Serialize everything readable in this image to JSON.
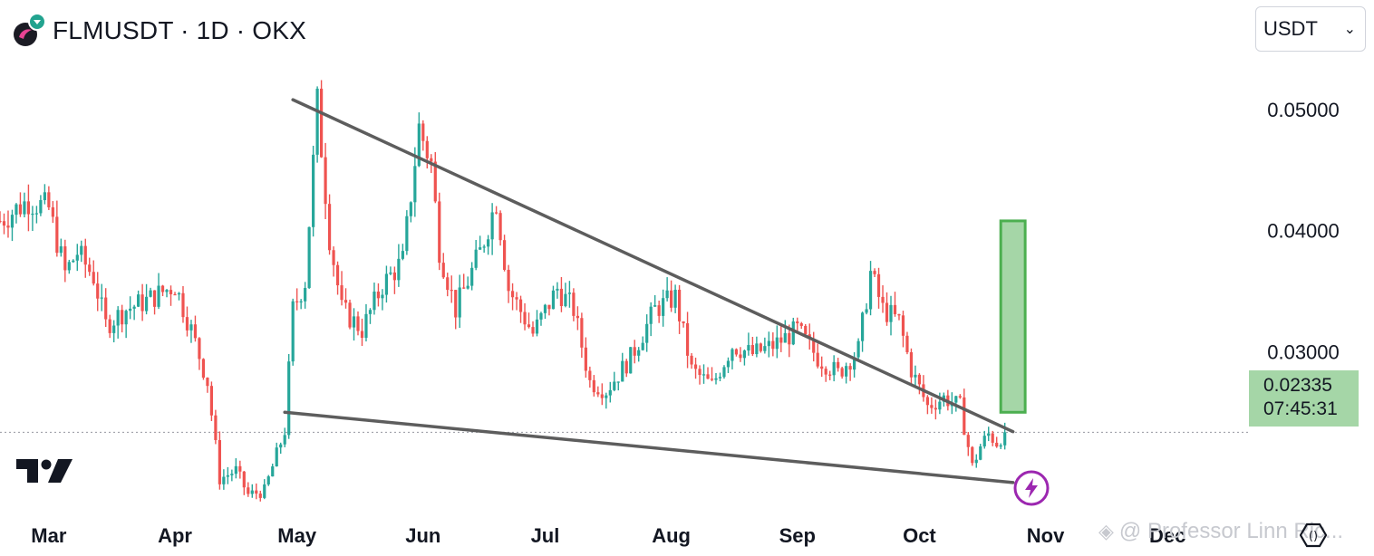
{
  "header": {
    "title": "FLMUSDT · 1D · OKX"
  },
  "currency": {
    "selected": "USDT"
  },
  "price_label": {
    "price": "0.02335",
    "countdown": "07:45:31"
  },
  "watermark": {
    "text": "@ Professor Linn Ric..."
  },
  "colors": {
    "up": "#26a69a",
    "down": "#ef5350",
    "trendline": "#5d5d5d",
    "target_fill": "#a5d6a7",
    "target_stroke": "#4caf50",
    "bolt": "#9c27b0",
    "current_price_line": "#9598a1"
  },
  "chart_data": {
    "type": "candlestick",
    "title": "FLMUSDT · 1D · OKX",
    "x_axis": {
      "labels": [
        "Mar",
        "Apr",
        "May",
        "Jun",
        "Jul",
        "Aug",
        "Sep",
        "Oct",
        "Nov",
        "Dec"
      ],
      "range": [
        "2024-02-18",
        "2024-12-21"
      ]
    },
    "y_axis": {
      "ticks": [
        "0.05000",
        "0.04000",
        "0.03000"
      ],
      "range": [
        0.0168,
        0.0538
      ]
    },
    "current_price": 0.02335,
    "series_close_path": [
      [
        "2024-02-18",
        0.0408
      ],
      [
        "2024-02-25",
        0.0425
      ],
      [
        "2024-03-01",
        0.0418
      ],
      [
        "2024-03-05",
        0.0365
      ],
      [
        "2024-03-08",
        0.0382
      ],
      [
        "2024-03-12",
        0.0362
      ],
      [
        "2024-03-15",
        0.0322
      ],
      [
        "2024-03-20",
        0.0335
      ],
      [
        "2024-03-25",
        0.0342
      ],
      [
        "2024-04-01",
        0.0355
      ],
      [
        "2024-04-05",
        0.0318
      ],
      [
        "2024-04-09",
        0.0275
      ],
      [
        "2024-04-12",
        0.0195
      ],
      [
        "2024-04-16",
        0.0202
      ],
      [
        "2024-04-19",
        0.0182
      ],
      [
        "2024-04-23",
        0.0185
      ],
      [
        "2024-04-26",
        0.0215
      ],
      [
        "2024-04-28",
        0.0235
      ],
      [
        "2024-04-30",
        0.0335
      ],
      [
        "2024-05-03",
        0.0358
      ],
      [
        "2024-05-06",
        0.0505
      ],
      [
        "2024-05-09",
        0.0395
      ],
      [
        "2024-05-12",
        0.0335
      ],
      [
        "2024-05-17",
        0.0318
      ],
      [
        "2024-05-22",
        0.0355
      ],
      [
        "2024-05-27",
        0.0375
      ],
      [
        "2024-05-31",
        0.0485
      ],
      [
        "2024-06-03",
        0.0455
      ],
      [
        "2024-06-05",
        0.0385
      ],
      [
        "2024-06-09",
        0.0335
      ],
      [
        "2024-06-15",
        0.0382
      ],
      [
        "2024-06-19",
        0.0425
      ],
      [
        "2024-06-22",
        0.0352
      ],
      [
        "2024-06-28",
        0.0315
      ],
      [
        "2024-07-04",
        0.0352
      ],
      [
        "2024-07-08",
        0.0335
      ],
      [
        "2024-07-12",
        0.0275
      ],
      [
        "2024-07-16",
        0.0268
      ],
      [
        "2024-07-22",
        0.0295
      ],
      [
        "2024-07-28",
        0.0335
      ],
      [
        "2024-08-02",
        0.0345
      ],
      [
        "2024-08-06",
        0.0285
      ],
      [
        "2024-08-11",
        0.0272
      ],
      [
        "2024-08-16",
        0.0305
      ],
      [
        "2024-08-21",
        0.0298
      ],
      [
        "2024-08-26",
        0.0305
      ],
      [
        "2024-09-01",
        0.0318
      ],
      [
        "2024-09-06",
        0.0295
      ],
      [
        "2024-09-11",
        0.0282
      ],
      [
        "2024-09-16",
        0.0302
      ],
      [
        "2024-09-19",
        0.0365
      ],
      [
        "2024-09-22",
        0.0335
      ],
      [
        "2024-09-26",
        0.0325
      ],
      [
        "2024-09-29",
        0.0285
      ],
      [
        "2024-10-03",
        0.0255
      ],
      [
        "2024-10-07",
        0.0262
      ],
      [
        "2024-10-11",
        0.0255
      ],
      [
        "2024-10-14",
        0.0205
      ],
      [
        "2024-10-16",
        0.0222
      ],
      [
        "2024-10-18",
        0.0232
      ],
      [
        "2024-10-20",
        0.0225
      ],
      [
        "2024-10-22",
        0.02335
      ]
    ],
    "annotations": {
      "upper_trendline": [
        [
          "2024-04-30",
          0.0508
        ],
        [
          "2024-10-24",
          0.0234
        ]
      ],
      "lower_trendline": [
        [
          "2024-04-28",
          0.025
        ],
        [
          "2024-10-24",
          0.0192
        ]
      ],
      "target_box": {
        "x": [
          "2024-10-21",
          "2024-10-27"
        ],
        "y": [
          0.025,
          0.0408
        ]
      }
    },
    "grid": false,
    "legend": "none"
  }
}
